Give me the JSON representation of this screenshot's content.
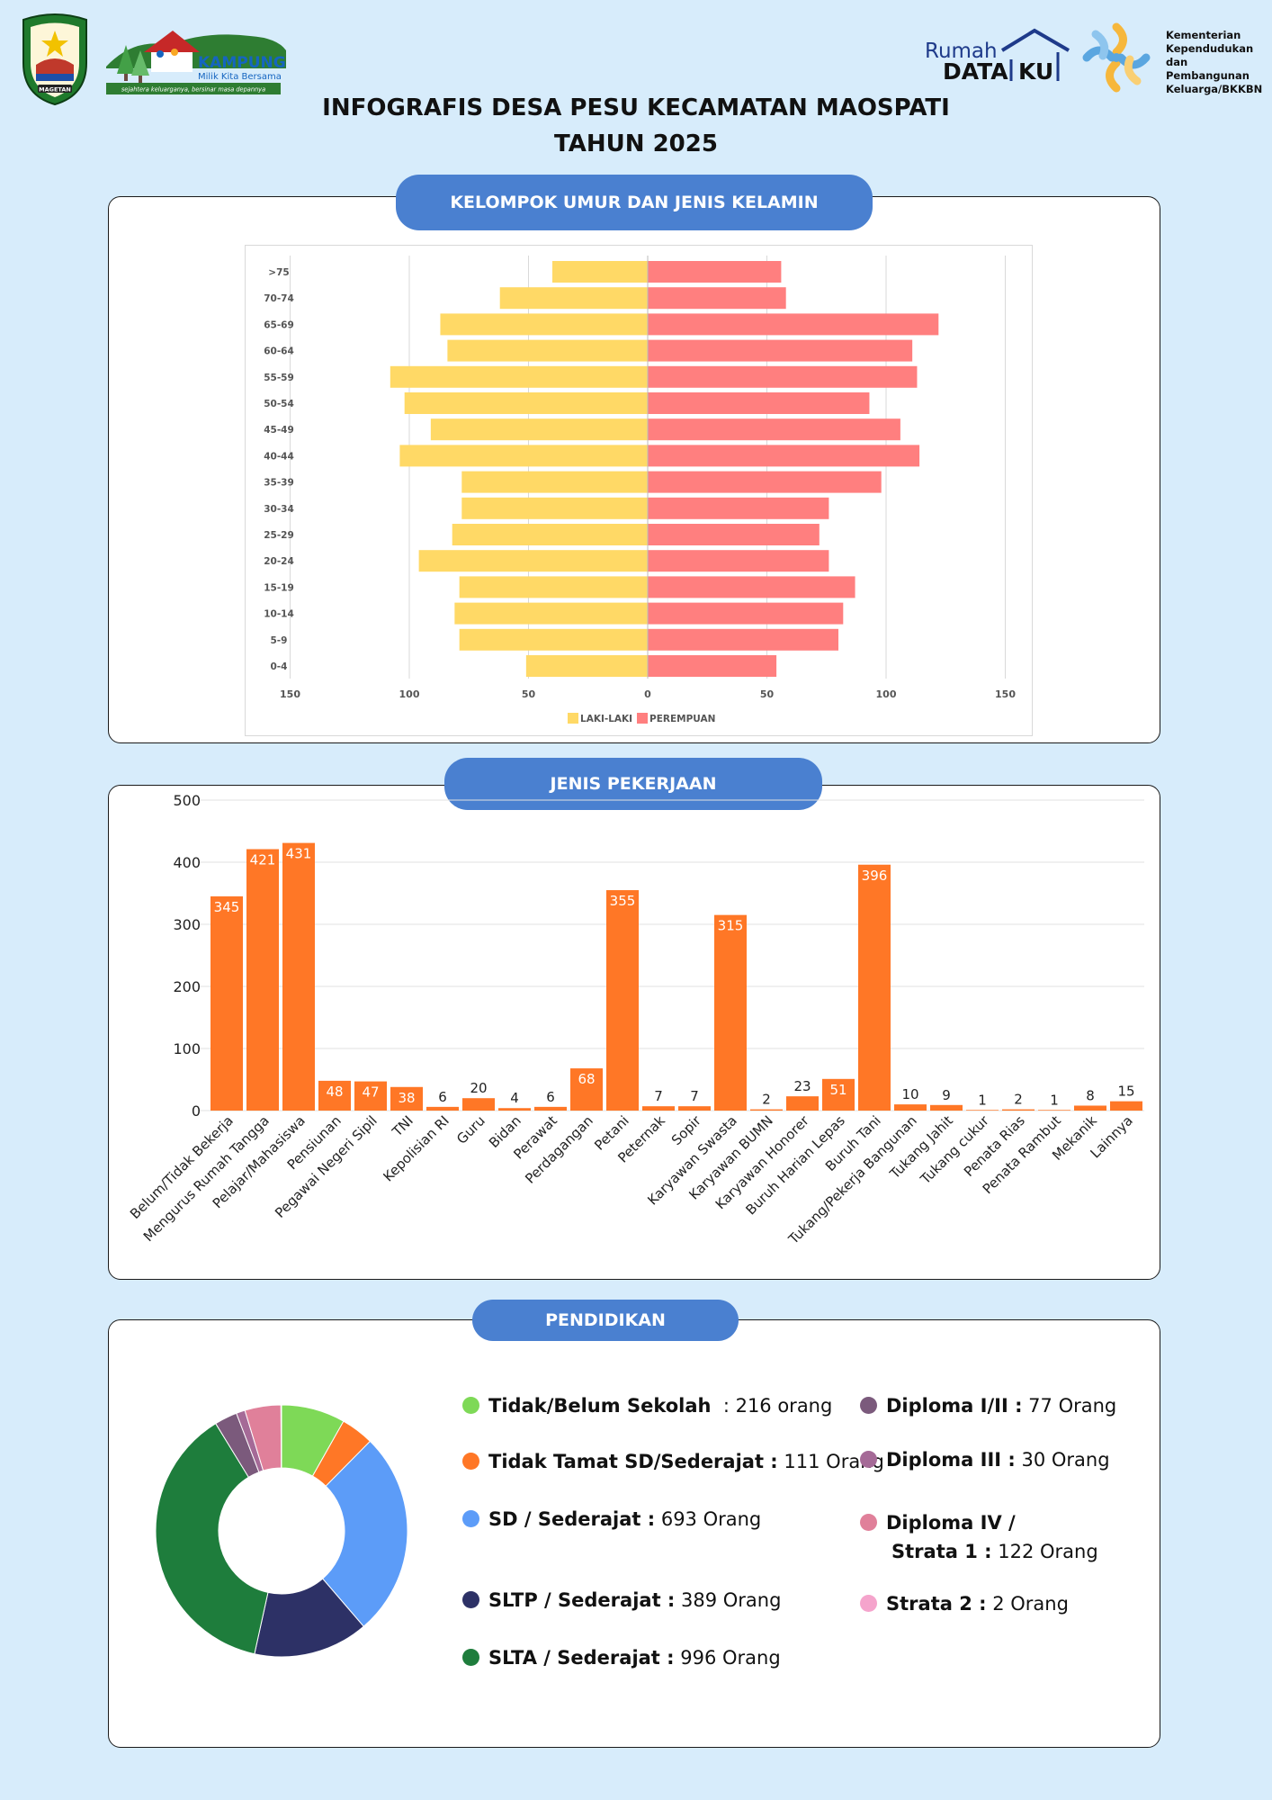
{
  "header": {
    "title_line1": "INFOGRAFIS DESA PESU KECAMATAN MAOSPATI",
    "title_line2": "TAHUN 2025",
    "seal_text": "MAGETAN",
    "kampung_kb": {
      "title": "KAMPUNG KB",
      "subtitle": "Milik Kita Bersama",
      "tagline": "sejahtera keluarganya, bersinar masa depannya"
    },
    "rumah_dataku": {
      "part1": "Rumah",
      "part2": "DATA",
      "part3": "KU"
    },
    "kementerian": [
      "Kementerian",
      "Kependudukan",
      "dan Pembangunan",
      "Keluarga/BKKBN"
    ]
  },
  "colors": {
    "background": "#d7ecfb",
    "pill": "#4a80d0",
    "male": "#ffd966",
    "female": "#ff7f7f",
    "bar": "#ff7726"
  },
  "sections": {
    "age": "KELOMPOK UMUR DAN JENIS KELAMIN",
    "jobs": "JENIS PEKERJAAN",
    "edu": "PENDIDIKAN"
  },
  "chart_data": [
    {
      "type": "bar",
      "orientation": "horizontal-pyramid",
      "categories": [
        ">75",
        "70-74",
        "65-69",
        "60-64",
        "55-59",
        "50-54",
        "45-49",
        "40-44",
        "35-39",
        "30-34",
        "25-29",
        "20-24",
        "15-19",
        "10-14",
        "5-9",
        "0-4"
      ],
      "series": [
        {
          "name": "LAKI-LAKI",
          "values": [
            40,
            62,
            87,
            84,
            108,
            102,
            91,
            104,
            78,
            78,
            82,
            96,
            79,
            81,
            79,
            51
          ]
        },
        {
          "name": "PEREMPUAN",
          "values": [
            56,
            58,
            122,
            111,
            113,
            93,
            106,
            114,
            98,
            76,
            72,
            76,
            87,
            82,
            80,
            54
          ]
        }
      ],
      "xlim": [
        -150,
        150
      ],
      "xticks": [
        "150",
        "100",
        "50",
        "0",
        "50",
        "100",
        "150"
      ],
      "legend": "bottom"
    },
    {
      "type": "bar",
      "categories": [
        "Belum/Tidak Bekerja",
        "Mengurus Rumah Tangga",
        "Pelajar/Mahasiswa",
        "Pensiunan",
        "Pegawai Negeri Sipil",
        "TNI",
        "Kepolisian RI",
        "Guru",
        "Bidan",
        "Perawat",
        "Perdagangan",
        "Petani",
        "Peternak",
        "Sopir",
        "Karyawan Swasta",
        "Karyawan BUMN",
        "Karyawan Honorer",
        "Buruh Harian Lepas",
        "Buruh Tani",
        "Tukang/Pekerja Bangunan",
        "Tukang Jahit",
        "Tukang cukur",
        "Penata Rias",
        "Penata Rambut",
        "Mekanik",
        "Lainnya"
      ],
      "values": [
        345,
        421,
        431,
        48,
        47,
        38,
        6,
        20,
        4,
        6,
        68,
        355,
        7,
        7,
        315,
        2,
        23,
        51,
        396,
        10,
        9,
        1,
        2,
        1,
        8,
        15
      ],
      "ylim": [
        0,
        500
      ],
      "yticks": [
        "0",
        "100",
        "200",
        "300",
        "400",
        "500"
      ],
      "grid": true
    },
    {
      "type": "pie",
      "variant": "donut",
      "labels": [
        "Tidak/Belum Sekolah",
        "Tidak Tamat SD/Sederajat",
        "SD / Sederajat",
        "SLTP / Sederajat",
        "SLTA / Sederajat",
        "Diploma I/II",
        "Diploma III",
        "Diploma IV / Strata 1",
        "Strata 2"
      ],
      "values": [
        216,
        111,
        693,
        389,
        996,
        77,
        30,
        122,
        2
      ],
      "colors": [
        "#7ed957",
        "#ff7726",
        "#5c9cf8",
        "#2d3166",
        "#1e7d3c",
        "#7b5a7c",
        "#a56a97",
        "#e0809a",
        "#f5a4cc"
      ]
    }
  ],
  "education_legend": [
    {
      "name": "Tidak/Belum Sekolah",
      "sep": "  : ",
      "value": "216 orang",
      "color": "#7ed957"
    },
    {
      "name": "Tidak Tamat SD/Sederajat :",
      "sep": " ",
      "value": "111 Orang",
      "color": "#ff7726"
    },
    {
      "name": "SD / Sederajat :",
      "sep": " ",
      "value": "693 Orang",
      "color": "#5c9cf8"
    },
    {
      "name": "SLTP / Sederajat :",
      "sep": " ",
      "value": "389 Orang",
      "color": "#2d3166"
    },
    {
      "name": "SLTA / Sederajat :",
      "sep": " ",
      "value": "996 Orang",
      "color": "#1e7d3c"
    },
    {
      "name": "Diploma I/II :",
      "sep": " ",
      "value": "77 Orang",
      "color": "#7b5a7c"
    },
    {
      "name": "Diploma III :",
      "sep": " ",
      "value": "30 Orang",
      "color": "#a56a97"
    },
    {
      "name": "Diploma IV /",
      "name2": "Strata 1 :",
      "sep": " ",
      "value": "122 Orang",
      "color": "#e0809a"
    },
    {
      "name": "Strata 2 :",
      "sep": " ",
      "value": "2 Orang",
      "color": "#f5a4cc"
    }
  ]
}
